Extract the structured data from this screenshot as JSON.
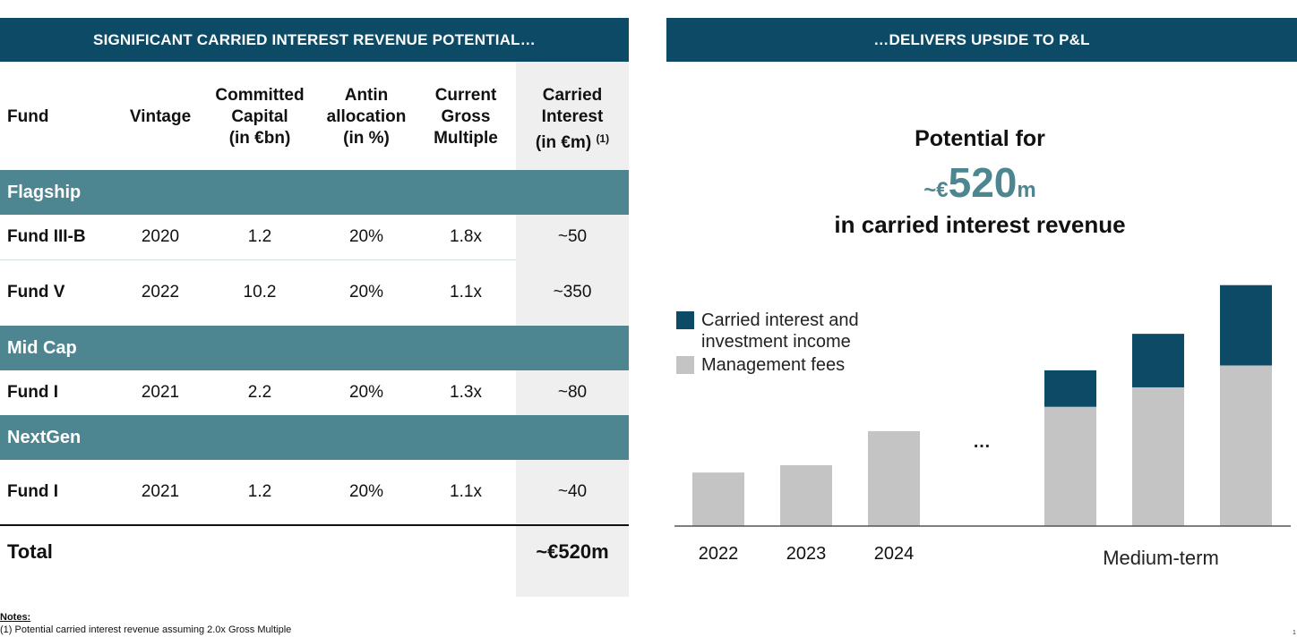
{
  "left_header": "SIGNIFICANT CARRIED INTEREST REVENUE POTENTIAL…",
  "right_header": "…DELIVERS UPSIDE TO P&L",
  "table": {
    "headers": {
      "fund": "Fund",
      "vintage": "Vintage",
      "committed": [
        "Committed",
        "Capital",
        "(in €bn)"
      ],
      "antin": [
        "Antin",
        "allocation",
        "(in %)"
      ],
      "gross": [
        "Current",
        "Gross",
        "Multiple"
      ],
      "carried": [
        "Carried",
        "Interest",
        "(in €m)"
      ],
      "carried_note": "(1)"
    },
    "groups": {
      "flagship": "Flagship",
      "midcap": "Mid Cap",
      "nextgen": "NextGen"
    },
    "rows": [
      {
        "fund": "Fund III-B",
        "vintage": "2020",
        "committed": "1.2",
        "antin": "20%",
        "gross": "1.8x",
        "carried": "~50"
      },
      {
        "fund": "Fund V",
        "vintage": "2022",
        "committed": "10.2",
        "antin": "20%",
        "gross": "1.1x",
        "carried": "~350"
      },
      {
        "fund": "Fund I",
        "vintage": "2021",
        "committed": "2.2",
        "antin": "20%",
        "gross": "1.3x",
        "carried": "~80"
      },
      {
        "fund": "Fund I",
        "vintage": "2021",
        "committed": "1.2",
        "antin": "20%",
        "gross": "1.1x",
        "carried": "~40"
      }
    ],
    "total_label": "Total",
    "total_value": "~€520m"
  },
  "notes": {
    "title": "Notes:",
    "items": [
      "(1)  Potential carried interest revenue assuming 2.0x Gross Multiple"
    ]
  },
  "headline": {
    "line1": "Potential for",
    "prefix": "~€",
    "value": "520",
    "suffix": "m",
    "line3": "in carried interest revenue"
  },
  "page_number": "1",
  "chart_data": {
    "type": "bar",
    "stacked": true,
    "categories": [
      "2022",
      "2023",
      "2024",
      "",
      "",
      ""
    ],
    "group_label": "Medium-term",
    "ellipsis": "…",
    "series": [
      {
        "name": "Management fees",
        "color": "#c4c4c4",
        "values": [
          22,
          25,
          39,
          49,
          57,
          66
        ]
      },
      {
        "name": "Carried interest and investment income",
        "color": "#0d4a66",
        "values": [
          0,
          0,
          0,
          15,
          22,
          33
        ]
      }
    ],
    "ylim": [
      0,
      100
    ],
    "grid": false,
    "legend_placement": "top-left"
  }
}
